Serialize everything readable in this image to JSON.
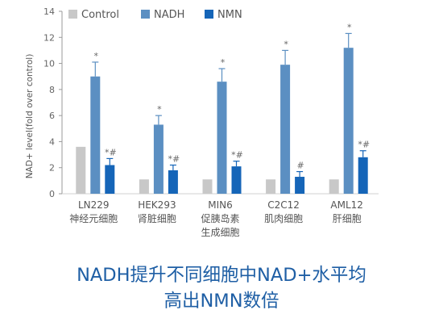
{
  "chart_data": {
    "type": "bar",
    "ylabel": "NAD+ level(fold over control)",
    "ylim": [
      0,
      14
    ],
    "yticks": [
      0,
      2,
      4,
      6,
      8,
      10,
      12,
      14
    ],
    "legend_placement": "top",
    "grid": false,
    "categories": [
      [
        "LN229",
        "神经元细胞"
      ],
      [
        "HEK293",
        "肾脏细胞"
      ],
      [
        "MIN6",
        "促胰岛素",
        "生成细胞"
      ],
      [
        "C2C12",
        "肌肉细胞"
      ],
      [
        "AML12",
        "肝细胞"
      ]
    ],
    "series": [
      {
        "name": "Control",
        "color": "#c8c8c8",
        "values": [
          3.6,
          1.1,
          1.1,
          1.1,
          1.1
        ],
        "errors": [
          0,
          0,
          0,
          0,
          0
        ],
        "annotations": [
          "",
          "",
          "",
          "",
          ""
        ]
      },
      {
        "name": "NADH",
        "color": "#5b8fc2",
        "values": [
          9.0,
          5.3,
          8.6,
          9.9,
          11.2
        ],
        "errors": [
          1.1,
          0.7,
          1.0,
          1.1,
          1.1
        ],
        "annotations": [
          "*",
          "*",
          "*",
          "*",
          "*"
        ]
      },
      {
        "name": "NMN",
        "color": "#1565b8",
        "values": [
          2.2,
          1.8,
          2.1,
          1.3,
          2.8
        ],
        "errors": [
          0.5,
          0.4,
          0.4,
          0.4,
          0.5
        ],
        "annotations": [
          "*#",
          "*#",
          "*#",
          "#",
          "*#"
        ]
      }
    ]
  },
  "caption": {
    "line1": "NADH提升不同细胞中NAD+水平均",
    "line2": "高出NMN数倍"
  }
}
